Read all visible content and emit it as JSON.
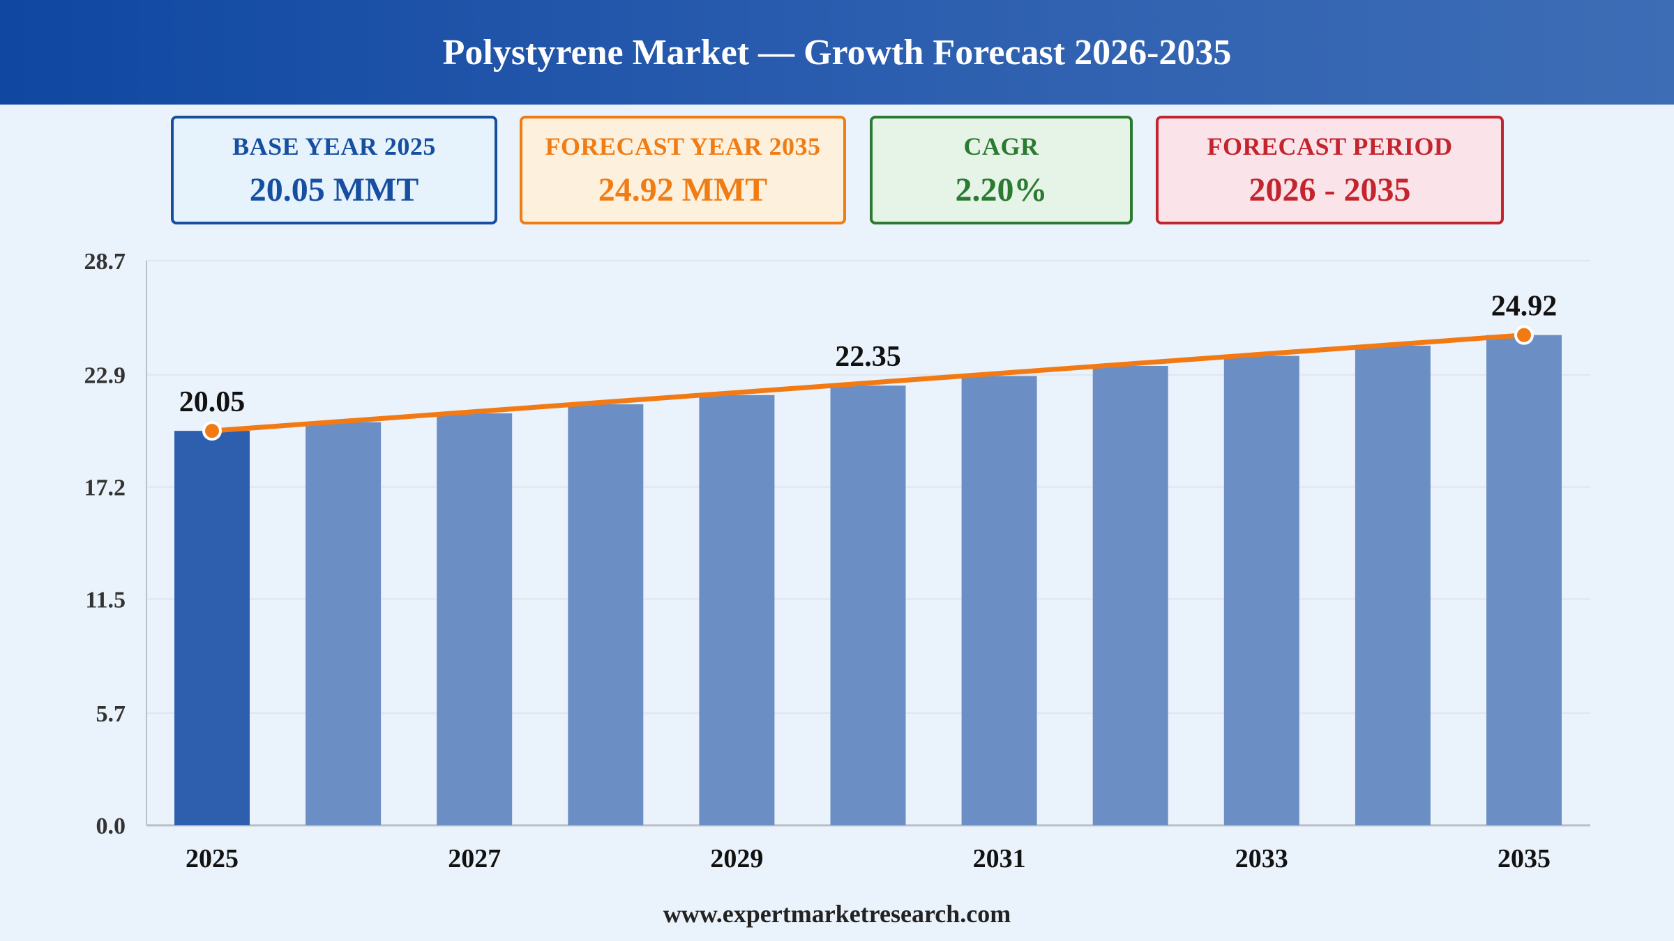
{
  "title": "Polystyrene Market — Growth Forecast 2026-2035",
  "cards": {
    "base": {
      "label": "BASE YEAR 2025",
      "value": "20.05 MMT"
    },
    "forecast": {
      "label": "FORECAST YEAR 2035",
      "value": "24.92 MMT"
    },
    "cagr": {
      "label": "CAGR",
      "value": "2.20%"
    },
    "period": {
      "label": "FORECAST PERIOD",
      "value": "2026 - 2035"
    }
  },
  "footer": "www.expertmarketresearch.com",
  "colors": {
    "base_bar": "#2e5fae",
    "bar": "#6b8fc4",
    "trend_line": "#f27a14",
    "grid": "#dfe5ee",
    "axis": "#b8bfca",
    "text": "#111111"
  },
  "chart_data": {
    "type": "bar",
    "categories": [
      "2025",
      "2026",
      "2027",
      "2028",
      "2029",
      "2030",
      "2031",
      "2032",
      "2033",
      "2034",
      "2035"
    ],
    "values": [
      20.05,
      20.49,
      20.94,
      21.4,
      21.87,
      22.35,
      22.84,
      23.35,
      23.86,
      24.38,
      24.92
    ],
    "tick_labels_x": [
      "2025",
      "2027",
      "2029",
      "2031",
      "2033",
      "2035"
    ],
    "y_ticks": [
      "0.0",
      "5.7",
      "11.5",
      "17.2",
      "22.9",
      "28.7"
    ],
    "ylim": [
      0,
      28.7
    ],
    "data_labels": [
      {
        "category": "2025",
        "text": "20.05"
      },
      {
        "category": "2030",
        "text": "22.35"
      },
      {
        "category": "2035",
        "text": "24.92"
      }
    ],
    "trend_line": {
      "from": "2025",
      "to": "2035",
      "start": 20.05,
      "end": 24.92
    },
    "grid": true,
    "legend": "none",
    "xlabel": "",
    "ylabel": ""
  }
}
